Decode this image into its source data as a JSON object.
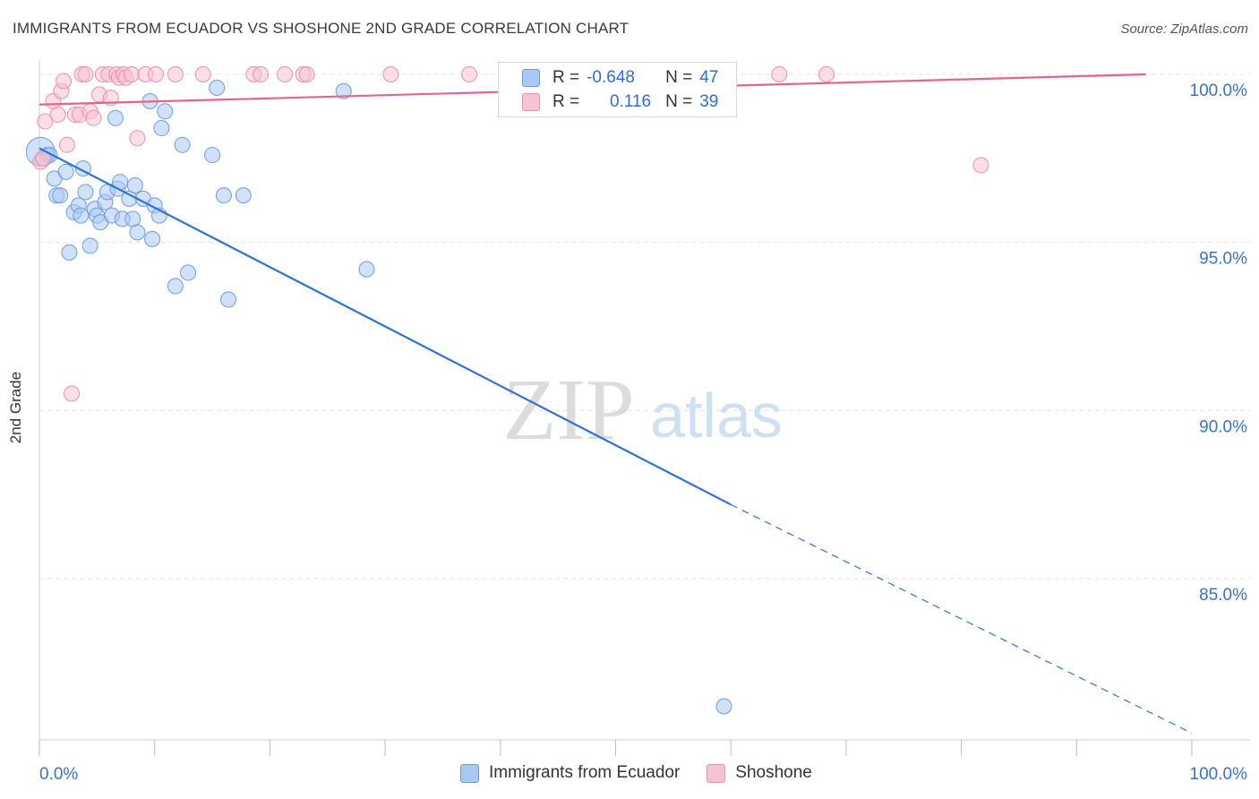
{
  "title": "IMMIGRANTS FROM ECUADOR VS SHOSHONE 2ND GRADE CORRELATION CHART",
  "source": "Source: ZipAtlas.com",
  "colors": {
    "blue_fill": "#a9c8f2",
    "blue_stroke": "#6d9de0",
    "blue_line": "#2f72d6",
    "pink_fill": "#f7c3d3",
    "pink_stroke": "#ec8fae",
    "pink_line": "#e8628f",
    "tick_text": "#3a72c9",
    "grid": "#e4e4e4"
  },
  "legend": {
    "rows": [
      {
        "r_label": "R =",
        "r_value": "-0.648",
        "n_label": "N =",
        "n_value": "47"
      },
      {
        "r_label": "R =",
        "r_value": "0.116",
        "n_label": "N =",
        "n_value": "39"
      }
    ]
  },
  "bottom_legend": {
    "series1": "Immigrants from Ecuador",
    "series2": "Shoshone"
  },
  "watermark": {
    "zip": "ZIP",
    "atlas": "atlas"
  },
  "chart_data": {
    "type": "scatter",
    "title": "IMMIGRANTS FROM ECUADOR VS SHOSHONE 2ND GRADE CORRELATION CHART",
    "xlabel": "",
    "ylabel": "2nd Grade",
    "xlim": [
      0,
      100
    ],
    "ylim": [
      80.2,
      100.4
    ],
    "x_tick_labels": [
      "0.0%",
      "100.0%"
    ],
    "y_ticks": [
      100,
      95,
      90,
      85
    ],
    "y_tick_labels": [
      "100.0%",
      "95.0%",
      "90.0%",
      "85.0%"
    ],
    "grid": true,
    "series": [
      {
        "name": "Immigrants from Ecuador",
        "color": "blue",
        "points": [
          [
            0.1,
            97.7
          ],
          [
            0.4,
            97.5
          ],
          [
            0.7,
            97.6
          ],
          [
            1.3,
            96.9
          ],
          [
            1.5,
            96.4
          ],
          [
            1.8,
            96.4
          ],
          [
            2.3,
            97.1
          ],
          [
            2.6,
            94.7
          ],
          [
            3.0,
            95.9
          ],
          [
            3.4,
            96.1
          ],
          [
            3.6,
            95.8
          ],
          [
            3.8,
            97.2
          ],
          [
            4.0,
            96.5
          ],
          [
            4.4,
            94.9
          ],
          [
            4.8,
            96.0
          ],
          [
            5.0,
            95.8
          ],
          [
            5.3,
            95.6
          ],
          [
            5.7,
            96.2
          ],
          [
            5.9,
            96.5
          ],
          [
            6.3,
            95.8
          ],
          [
            6.6,
            98.7
          ],
          [
            6.8,
            96.6
          ],
          [
            7.0,
            96.8
          ],
          [
            7.2,
            95.7
          ],
          [
            7.8,
            96.3
          ],
          [
            8.1,
            95.7
          ],
          [
            8.3,
            96.7
          ],
          [
            8.5,
            95.3
          ],
          [
            9.0,
            96.3
          ],
          [
            9.6,
            99.2
          ],
          [
            9.8,
            95.1
          ],
          [
            10.0,
            96.1
          ],
          [
            10.4,
            95.8
          ],
          [
            10.6,
            98.4
          ],
          [
            10.9,
            98.9
          ],
          [
            11.8,
            93.7
          ],
          [
            12.4,
            97.9
          ],
          [
            12.9,
            94.1
          ],
          [
            15.0,
            97.6
          ],
          [
            15.4,
            99.6
          ],
          [
            16.0,
            96.4
          ],
          [
            16.4,
            93.3
          ],
          [
            17.7,
            96.4
          ],
          [
            26.4,
            99.5
          ],
          [
            28.4,
            94.2
          ],
          [
            59.4,
            81.2
          ],
          [
            0.9,
            97.6
          ]
        ],
        "trend": {
          "x0": 0,
          "y0": 97.8,
          "x1": 60,
          "y1": 87.2,
          "dash_x1": 100,
          "dash_y1": 80.4
        }
      },
      {
        "name": "Shoshone",
        "color": "pink",
        "points": [
          [
            0.1,
            97.4
          ],
          [
            0.5,
            98.6
          ],
          [
            1.2,
            99.2
          ],
          [
            1.6,
            98.8
          ],
          [
            1.9,
            99.5
          ],
          [
            2.1,
            99.8
          ],
          [
            2.4,
            97.9
          ],
          [
            2.8,
            90.5
          ],
          [
            3.1,
            98.8
          ],
          [
            3.5,
            98.8
          ],
          [
            3.7,
            100.0
          ],
          [
            4.0,
            100.0
          ],
          [
            4.4,
            98.9
          ],
          [
            4.7,
            98.7
          ],
          [
            5.2,
            99.4
          ],
          [
            5.5,
            100.0
          ],
          [
            6.0,
            100.0
          ],
          [
            6.2,
            99.3
          ],
          [
            6.7,
            100.0
          ],
          [
            6.9,
            99.9
          ],
          [
            7.3,
            100.0
          ],
          [
            7.5,
            99.9
          ],
          [
            8.0,
            100.0
          ],
          [
            8.5,
            98.1
          ],
          [
            9.2,
            100.0
          ],
          [
            10.1,
            100.0
          ],
          [
            11.8,
            100.0
          ],
          [
            14.2,
            100.0
          ],
          [
            18.6,
            100.0
          ],
          [
            19.2,
            100.0
          ],
          [
            21.3,
            100.0
          ],
          [
            22.9,
            100.0
          ],
          [
            23.2,
            100.0
          ],
          [
            30.5,
            100.0
          ],
          [
            37.3,
            100.0
          ],
          [
            64.2,
            100.0
          ],
          [
            68.3,
            100.0
          ],
          [
            81.7,
            97.3
          ],
          [
            0.3,
            97.5
          ]
        ],
        "trend": {
          "x0": 0,
          "y0": 99.1,
          "x1": 96,
          "y1": 100.0
        }
      }
    ]
  }
}
